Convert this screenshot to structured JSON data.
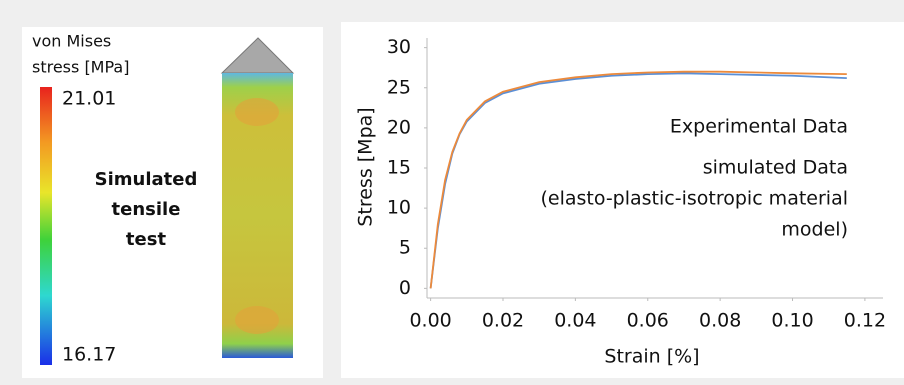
{
  "simulation": {
    "colorbar_title": [
      "von Mises",
      "stress [MPa]"
    ],
    "colorbar_max": "21.01",
    "colorbar_min": "16.17",
    "caption": [
      "Simulated",
      "tensile",
      "test"
    ]
  },
  "chart_data": {
    "type": "line",
    "xlabel": "Strain [%]",
    "ylabel": "Stress [Mpa]",
    "x": [
      0,
      0.002,
      0.004,
      0.006,
      0.008,
      0.01,
      0.015,
      0.02,
      0.03,
      0.04,
      0.05,
      0.06,
      0.07,
      0.08,
      0.09,
      0.1,
      0.115
    ],
    "series": [
      {
        "name": "Experimental Data",
        "color": "#ec8a3c",
        "values": [
          0,
          8,
          13.5,
          17,
          19.3,
          21,
          23.3,
          24.5,
          25.7,
          26.3,
          26.7,
          26.9,
          27,
          27,
          26.9,
          26.8,
          26.7
        ]
      },
      {
        "name": "simulated Data",
        "color": "#5b8fd6",
        "values": [
          0,
          7.5,
          13,
          16.8,
          19.2,
          20.8,
          23.1,
          24.3,
          25.5,
          26.1,
          26.5,
          26.7,
          26.8,
          26.7,
          26.6,
          26.5,
          26.2
        ]
      }
    ],
    "annotations": [
      "(elasto-plastic-isotropic material",
      "model)"
    ],
    "xlim": [
      -0.001,
      0.125
    ],
    "ylim": [
      -1.2,
      31.2
    ],
    "xticks": [
      {
        "value": 0,
        "label": "0.00"
      },
      {
        "value": 0.02,
        "label": "0.02"
      },
      {
        "value": 0.04,
        "label": "0.04"
      },
      {
        "value": 0.06,
        "label": "0.06"
      },
      {
        "value": 0.08,
        "label": "0.08"
      },
      {
        "value": 0.1,
        "label": "0.10"
      },
      {
        "value": 0.12,
        "label": "0.12"
      }
    ],
    "yticks": [
      0,
      5,
      10,
      15,
      20,
      25,
      30
    ],
    "grid": false
  }
}
